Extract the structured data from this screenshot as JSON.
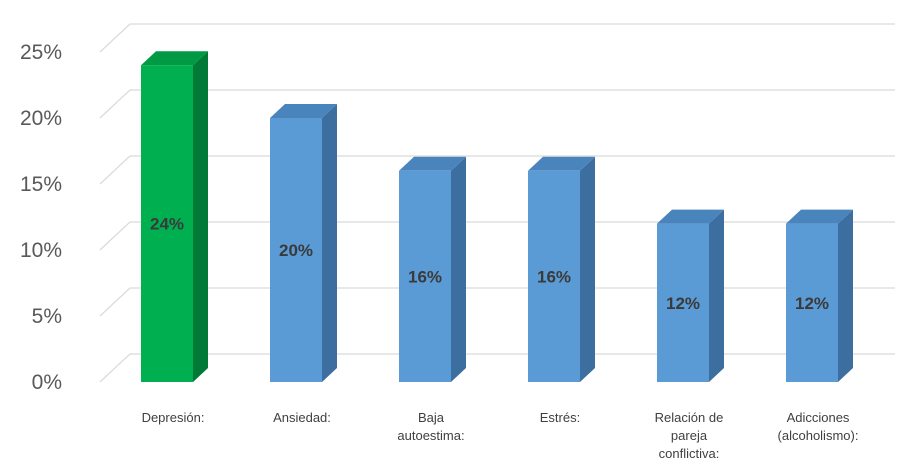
{
  "chart_data": {
    "type": "bar",
    "style": "3d-column",
    "categories": [
      "Depresión:",
      "Ansiedad:",
      "Baja autoestima:",
      "Estrés:",
      "Relación de pareja conflictiva:",
      "Adicciones (alcoholismo):"
    ],
    "category_lines": [
      [
        "Depresión:"
      ],
      [
        "Ansiedad:"
      ],
      [
        "Baja",
        "autoestima:"
      ],
      [
        "Estrés:"
      ],
      [
        "Relación de",
        "pareja",
        "conflictiva:"
      ],
      [
        "Adicciones",
        "(alcoholismo):"
      ]
    ],
    "values": [
      24,
      20,
      16,
      16,
      12,
      12
    ],
    "data_labels": [
      "24%",
      "20%",
      "16%",
      "16%",
      "12%",
      "12%"
    ],
    "highlight_index": 0,
    "colors": {
      "highlight_front": "#00b050",
      "highlight_side": "#007a36",
      "highlight_top": "#009a44",
      "bar_front": "#5b9bd5",
      "bar_side": "#3c6e9f",
      "bar_top": "#4a84bd",
      "grid": "#d9d9d9"
    },
    "y_ticks": [
      "0%",
      "5%",
      "10%",
      "15%",
      "20%",
      "25%"
    ],
    "ylim": [
      0,
      25
    ],
    "grid": true,
    "legend": "none"
  }
}
